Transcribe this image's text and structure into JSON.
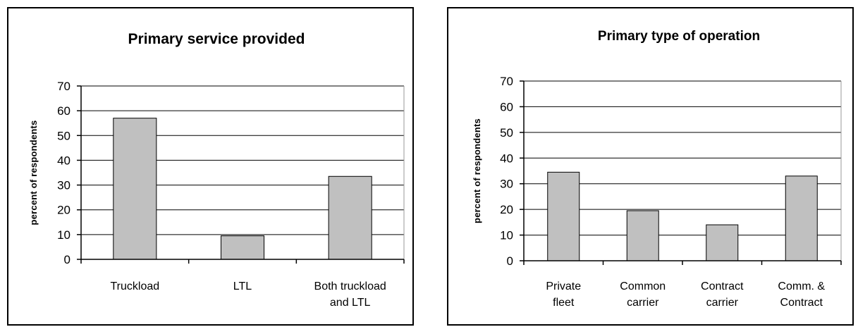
{
  "chart_data": [
    {
      "type": "bar",
      "title": "Primary service provided",
      "ylabel": "percent of respondents",
      "xlabel": "",
      "categories": [
        [
          "Truckload"
        ],
        [
          "LTL"
        ],
        [
          "Both truckload",
          "and LTL"
        ]
      ],
      "values": [
        57,
        9.5,
        33.5
      ],
      "ylim": [
        0,
        70
      ],
      "yticks": [
        0,
        10,
        20,
        30,
        40,
        50,
        60,
        70
      ],
      "grid": true,
      "bar_color": "#c0c0c0"
    },
    {
      "type": "bar",
      "title": "Primary type of operation",
      "ylabel": "percent of respondents",
      "xlabel": "",
      "categories": [
        [
          "Private",
          "fleet"
        ],
        [
          "Common",
          "carrier"
        ],
        [
          "Contract",
          "carrier"
        ],
        [
          "Comm. &",
          "Contract"
        ]
      ],
      "values": [
        34.5,
        19.5,
        14,
        33
      ],
      "ylim": [
        0,
        70
      ],
      "yticks": [
        0,
        10,
        20,
        30,
        40,
        50,
        60,
        70
      ],
      "grid": true,
      "bar_color": "#c0c0c0"
    }
  ]
}
